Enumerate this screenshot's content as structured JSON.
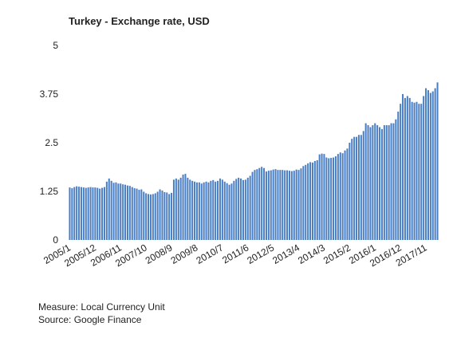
{
  "chart_data": {
    "type": "bar",
    "title": "Turkey - Exchange rate, USD",
    "categories": [
      "2005/1",
      null,
      null,
      null,
      null,
      null,
      null,
      null,
      null,
      null,
      null,
      "2005/12",
      null,
      null,
      null,
      null,
      null,
      null,
      null,
      null,
      null,
      null,
      "2006/11",
      null,
      null,
      null,
      null,
      null,
      null,
      null,
      null,
      null,
      null,
      "2007/10",
      null,
      null,
      null,
      null,
      null,
      null,
      null,
      null,
      null,
      null,
      "2008/9",
      null,
      null,
      null,
      null,
      null,
      null,
      null,
      null,
      null,
      null,
      "2009/8",
      null,
      null,
      null,
      null,
      null,
      null,
      null,
      null,
      null,
      null,
      "2010/7",
      null,
      null,
      null,
      null,
      null,
      null,
      null,
      null,
      null,
      null,
      "2011/6",
      null,
      null,
      null,
      null,
      null,
      null,
      null,
      null,
      null,
      null,
      "2012/5",
      null,
      null,
      null,
      null,
      null,
      null,
      null,
      null,
      null,
      null,
      "2013/4",
      null,
      null,
      null,
      null,
      null,
      null,
      null,
      null,
      null,
      null,
      "2014/3",
      null,
      null,
      null,
      null,
      null,
      null,
      null,
      null,
      null,
      null,
      "2015/2",
      null,
      null,
      null,
      null,
      null,
      null,
      null,
      null,
      null,
      null,
      "2016/1",
      null,
      null,
      null,
      null,
      null,
      null,
      null,
      null,
      null,
      null,
      "2016/12",
      null,
      null,
      null,
      null,
      null,
      null,
      null,
      null,
      null,
      null,
      "2017/11",
      null,
      null,
      null,
      null,
      null
    ],
    "values": [
      1.35,
      1.33,
      1.36,
      1.38,
      1.37,
      1.36,
      1.35,
      1.34,
      1.35,
      1.36,
      1.35,
      1.35,
      1.34,
      1.32,
      1.34,
      1.36,
      1.5,
      1.58,
      1.52,
      1.47,
      1.48,
      1.45,
      1.45,
      1.43,
      1.42,
      1.4,
      1.39,
      1.36,
      1.33,
      1.32,
      1.29,
      1.3,
      1.24,
      1.2,
      1.18,
      1.17,
      1.18,
      1.2,
      1.24,
      1.3,
      1.27,
      1.23,
      1.22,
      1.18,
      1.21,
      1.55,
      1.58,
      1.55,
      1.6,
      1.68,
      1.7,
      1.6,
      1.55,
      1.52,
      1.5,
      1.48,
      1.48,
      1.45,
      1.48,
      1.5,
      1.48,
      1.52,
      1.54,
      1.5,
      1.52,
      1.58,
      1.55,
      1.5,
      1.46,
      1.42,
      1.45,
      1.52,
      1.57,
      1.6,
      1.58,
      1.54,
      1.55,
      1.6,
      1.65,
      1.75,
      1.8,
      1.82,
      1.85,
      1.88,
      1.85,
      1.76,
      1.78,
      1.79,
      1.81,
      1.82,
      1.8,
      1.8,
      1.8,
      1.79,
      1.79,
      1.78,
      1.77,
      1.78,
      1.81,
      1.8,
      1.84,
      1.9,
      1.93,
      1.97,
      2.0,
      1.99,
      2.03,
      2.05,
      2.2,
      2.22,
      2.21,
      2.12,
      2.1,
      2.11,
      2.12,
      2.15,
      2.21,
      2.25,
      2.23,
      2.3,
      2.35,
      2.5,
      2.6,
      2.65,
      2.65,
      2.7,
      2.7,
      2.8,
      3.0,
      2.95,
      2.9,
      2.95,
      3.0,
      2.95,
      2.9,
      2.85,
      2.95,
      2.95,
      2.95,
      3.0,
      3.0,
      3.1,
      3.3,
      3.5,
      3.75,
      3.65,
      3.7,
      3.65,
      3.55,
      3.53,
      3.55,
      3.5,
      3.5,
      3.7,
      3.9,
      3.85,
      3.78,
      3.82,
      3.9,
      4.05
    ],
    "color": "#4a7fc4",
    "ylim": [
      0,
      5
    ],
    "yticks": [
      0,
      1.25,
      2.5,
      3.75,
      5
    ],
    "grid": false,
    "notes": [
      "Measure: Local Currency Unit",
      "Source: Google Finance"
    ]
  }
}
